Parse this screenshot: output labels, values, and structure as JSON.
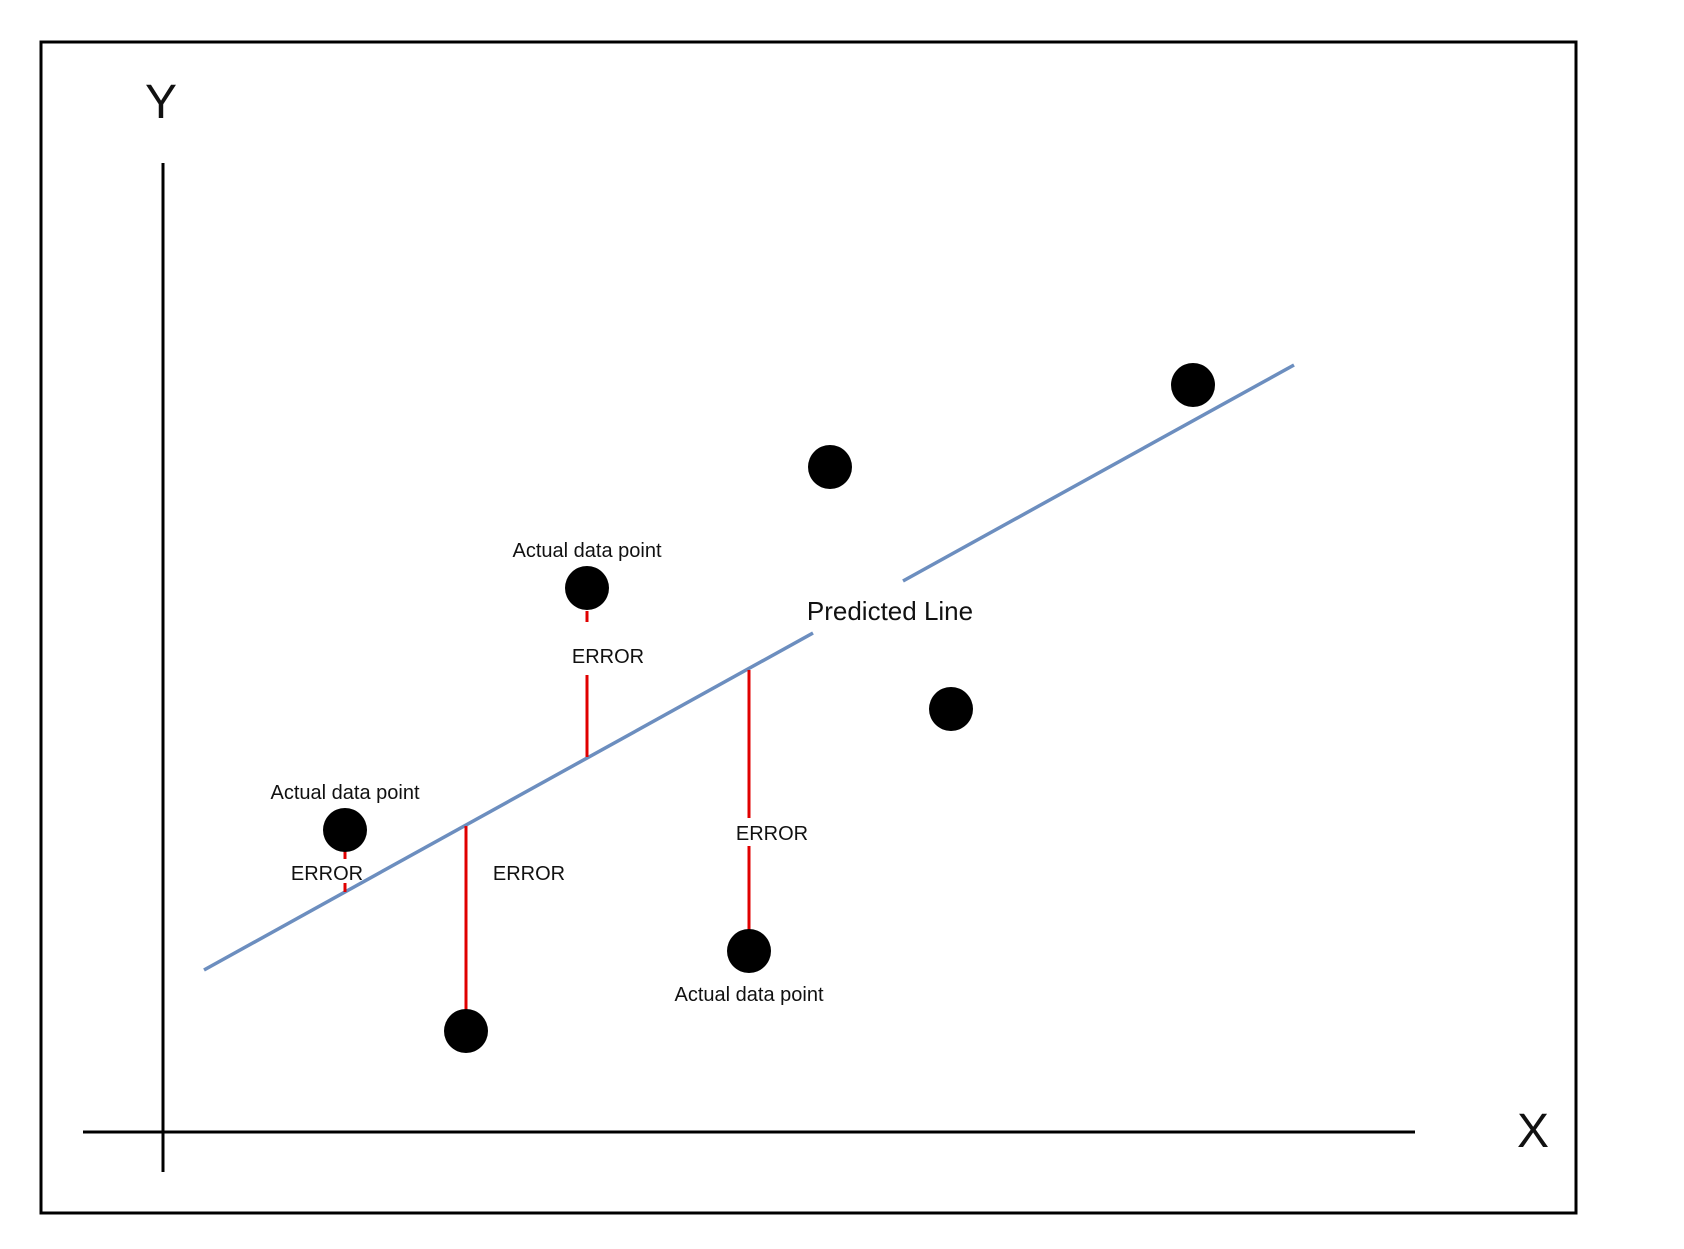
{
  "axes": {
    "x_label": "X",
    "y_label": "Y"
  },
  "line_label": "Predicted Line",
  "point_label": "Actual data point",
  "error_label": "ERROR",
  "colors": {
    "frame": "#000000",
    "axis": "#000000",
    "predicted_line": "#6c8ebf",
    "error": "#e00000",
    "point": "#000000"
  }
}
